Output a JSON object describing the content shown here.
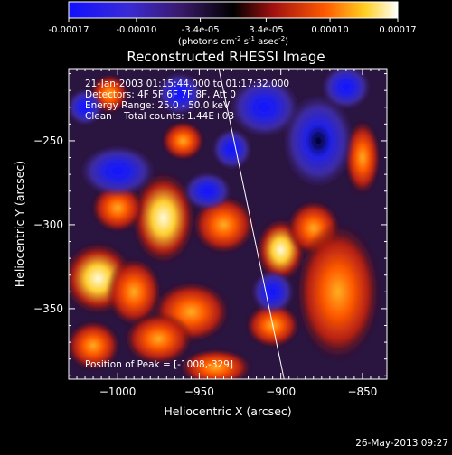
{
  "colorbar": {
    "tick_labels": [
      "-0.00017",
      "-0.00010",
      "-3.4e-05",
      "3.4e-05",
      "0.00010",
      "0.00017"
    ],
    "unit_label": "(photons cm",
    "unit_exp1": "-2",
    "unit_mid": " s",
    "unit_exp2": "-1",
    "unit_end": " asec",
    "unit_exp3": "-2",
    "unit_close": ")",
    "range": [
      -0.00017,
      0.00017
    ]
  },
  "info": {
    "line1": "21-Jan-2003 01:15:44.000 to 01:17:32.000",
    "line2": "Detectors: 4F 5F 6F 7F 8F, Att 0",
    "line3": "Energy Range: 25.0 - 50.0 keV",
    "line4": "Clean    Total counts: 1.44E+03"
  },
  "peak_label": "Position of Peak = [-1008,-329]",
  "footer_date": "26-May-2013 09:27",
  "chart_data": {
    "type": "heatmap",
    "title": "Reconstructed RHESSI Image",
    "xlabel": "Heliocentric X (arcsec)",
    "ylabel": "Heliocentric Y (arcsec)",
    "xlim": [
      -1030,
      -835
    ],
    "ylim": [
      -392,
      -207
    ],
    "x_ticks": [
      -1000,
      -950,
      -900,
      -850
    ],
    "y_ticks": [
      -250,
      -300,
      -350
    ],
    "x_tick_labels": [
      "−1000",
      "−950",
      "−900",
      "−850"
    ],
    "y_tick_labels": [
      "−250",
      "−300",
      "−350"
    ],
    "peak": [
      -1008,
      -329
    ],
    "colormap": "blue-black-red-yellow-white",
    "limb_line": [
      [
        -938,
        -207
      ],
      [
        -898,
        -392
      ]
    ],
    "features": [
      {
        "kind": "positive",
        "x": -972,
        "y": -296,
        "sx": 10,
        "sy": 14,
        "a": 1.0
      },
      {
        "kind": "positive",
        "x": -1012,
        "y": -332,
        "sx": 11,
        "sy": 11,
        "a": 1.0
      },
      {
        "kind": "positive",
        "x": -1000,
        "y": -290,
        "sx": 10,
        "sy": 9,
        "a": 0.55
      },
      {
        "kind": "positive",
        "x": -990,
        "y": -340,
        "sx": 10,
        "sy": 12,
        "a": 0.65
      },
      {
        "kind": "positive",
        "x": -955,
        "y": -352,
        "sx": 13,
        "sy": 10,
        "a": 0.8
      },
      {
        "kind": "positive",
        "x": -935,
        "y": -300,
        "sx": 11,
        "sy": 10,
        "a": 0.7
      },
      {
        "kind": "positive",
        "x": -900,
        "y": -315,
        "sx": 8,
        "sy": 10,
        "a": 0.9
      },
      {
        "kind": "positive",
        "x": -880,
        "y": -302,
        "sx": 9,
        "sy": 9,
        "a": 0.8
      },
      {
        "kind": "positive",
        "x": -865,
        "y": -340,
        "sx": 14,
        "sy": 22,
        "a": 0.85
      },
      {
        "kind": "positive",
        "x": -905,
        "y": -360,
        "sx": 10,
        "sy": 8,
        "a": 0.6
      },
      {
        "kind": "positive",
        "x": -975,
        "y": -368,
        "sx": 12,
        "sy": 9,
        "a": 0.7
      },
      {
        "kind": "positive",
        "x": -1015,
        "y": -372,
        "sx": 10,
        "sy": 9,
        "a": 0.6
      },
      {
        "kind": "positive",
        "x": -940,
        "y": -385,
        "sx": 14,
        "sy": 7,
        "a": 0.5
      },
      {
        "kind": "positive",
        "x": -1005,
        "y": -222,
        "sx": 8,
        "sy": 8,
        "a": 0.35
      },
      {
        "kind": "positive",
        "x": -960,
        "y": -250,
        "sx": 9,
        "sy": 8,
        "a": 0.35
      },
      {
        "kind": "positive",
        "x": -850,
        "y": -260,
        "sx": 7,
        "sy": 14,
        "a": 0.5
      },
      {
        "kind": "negative",
        "x": -1000,
        "y": -268,
        "sx": 12,
        "sy": 8,
        "a": 0.9
      },
      {
        "kind": "negative",
        "x": -877,
        "y": -250,
        "sx": 11,
        "sy": 14,
        "a": 1.0
      },
      {
        "kind": "negative",
        "x": -910,
        "y": -230,
        "sx": 12,
        "sy": 10,
        "a": 0.75
      },
      {
        "kind": "negative",
        "x": -860,
        "y": -218,
        "sx": 9,
        "sy": 8,
        "a": 0.6
      },
      {
        "kind": "negative",
        "x": -945,
        "y": -280,
        "sx": 9,
        "sy": 7,
        "a": 0.55
      },
      {
        "kind": "negative",
        "x": -962,
        "y": -222,
        "sx": 9,
        "sy": 8,
        "a": 0.5
      },
      {
        "kind": "negative",
        "x": -905,
        "y": -340,
        "sx": 8,
        "sy": 8,
        "a": 0.55
      },
      {
        "kind": "negative",
        "x": -1020,
        "y": -230,
        "sx": 7,
        "sy": 7,
        "a": 0.45
      },
      {
        "kind": "negative",
        "x": -930,
        "y": -255,
        "sx": 8,
        "sy": 8,
        "a": 0.4
      }
    ]
  }
}
